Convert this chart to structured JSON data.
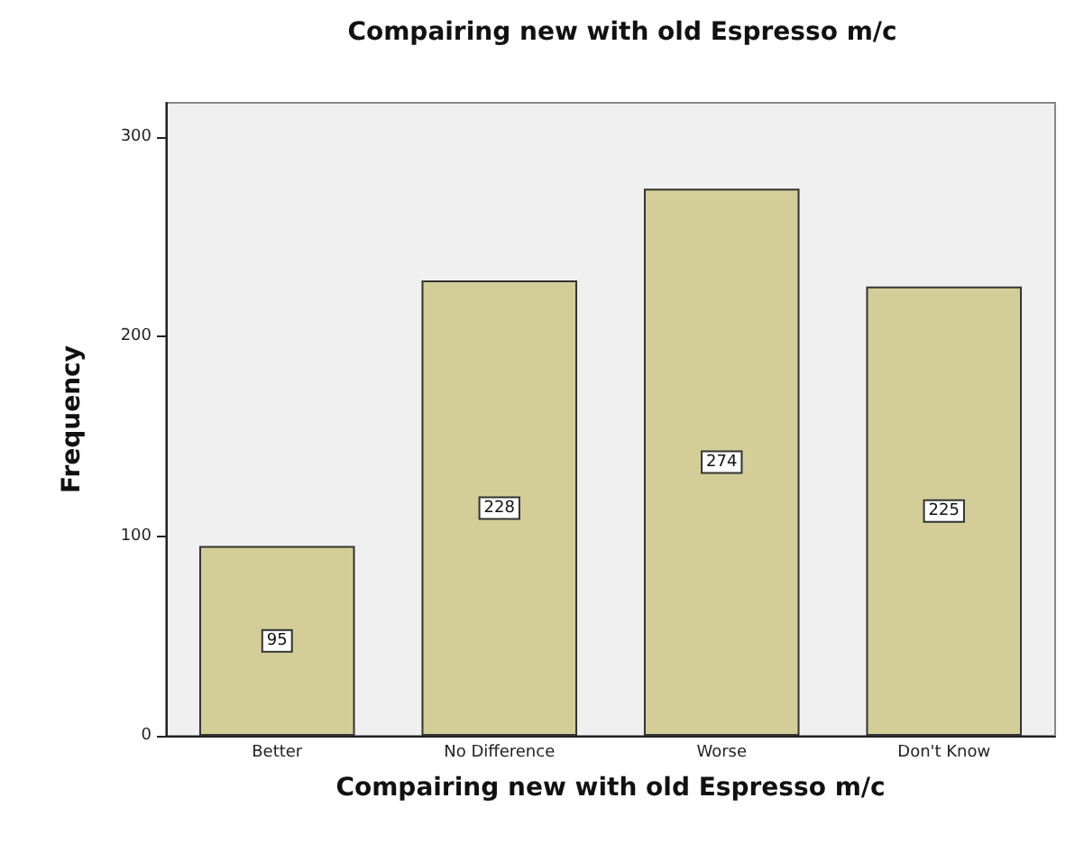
{
  "chart_data": {
    "type": "bar",
    "title": "Compairing new with old Espresso m/c",
    "xlabel": "Compairing new with old Espresso m/c",
    "ylabel": "Frequency",
    "categories": [
      "Better",
      "No Difference",
      "Worse",
      "Don't Know"
    ],
    "values": [
      95,
      228,
      274,
      225
    ],
    "color": "#d3ce97",
    "ylim": [
      0,
      317
    ],
    "yticks": [
      0,
      100,
      200,
      300
    ],
    "grid": false,
    "data_labels": true
  }
}
